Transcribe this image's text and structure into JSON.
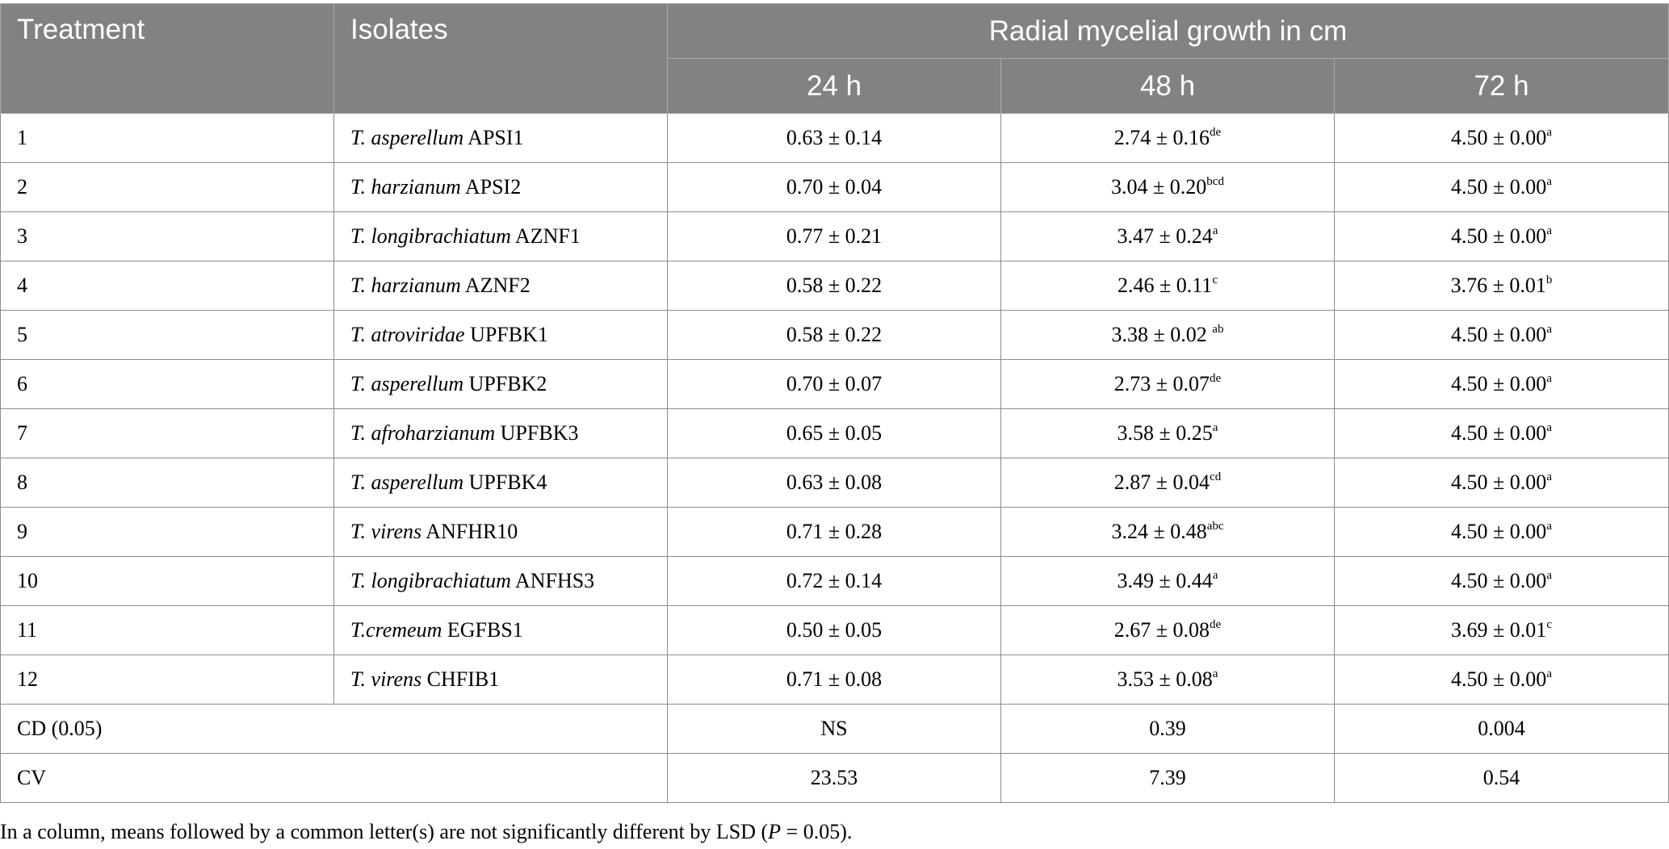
{
  "header": {
    "treatment": "Treatment",
    "isolates": "Isolates",
    "group": "Radial mycelial growth in cm",
    "h24": "24 h",
    "h48": "48 h",
    "h72": "72 h"
  },
  "rows": [
    {
      "treatment": "1",
      "species": "T. asperellum",
      "strain": " APSI1",
      "v24": "0.63 ± 0.14",
      "v48": "2.74 ± 0.16",
      "s48": "de",
      "v72": "4.50 ± 0.00",
      "s72": "a"
    },
    {
      "treatment": "2",
      "species": "T. harzianum",
      "strain": " APSI2",
      "v24": "0.70 ± 0.04",
      "v48": "3.04 ± 0.20",
      "s48": "bcd",
      "v72": "4.50 ± 0.00",
      "s72": "a"
    },
    {
      "treatment": "3",
      "species": "T. longibrachiatum",
      "strain": " AZNF1",
      "v24": "0.77 ± 0.21",
      "v48": "3.47 ± 0.24",
      "s48": "a",
      "v72": "4.50 ± 0.00",
      "s72": "a"
    },
    {
      "treatment": "4",
      "species": "T. harzianum",
      "strain": " AZNF2",
      "v24": "0.58 ± 0.22",
      "v48": "2.46 ± 0.11",
      "s48": "c",
      "v72": "3.76 ± 0.01",
      "s72": "b"
    },
    {
      "treatment": "5",
      "species": "T. atroviridae",
      "strain": " UPFBK1",
      "v24": "0.58 ± 0.22",
      "v48": "3.38 ± 0.02 ",
      "s48": "ab",
      "v72": "4.50 ± 0.00",
      "s72": "a"
    },
    {
      "treatment": "6",
      "species": "T. asperellum",
      "strain": " UPFBK2",
      "v24": "0.70 ± 0.07",
      "v48": "2.73 ± 0.07",
      "s48": "de",
      "v72": "4.50 ± 0.00",
      "s72": "a"
    },
    {
      "treatment": "7",
      "species": "T. afroharzianum",
      "strain": " UPFBK3",
      "v24": "0.65 ± 0.05",
      "v48": "3.58 ± 0.25",
      "s48": "a",
      "v72": "4.50 ± 0.00",
      "s72": "a"
    },
    {
      "treatment": "8",
      "species": "T. asperellum",
      "strain": " UPFBK4",
      "v24": "0.63 ± 0.08",
      "v48": "2.87 ± 0.04",
      "s48": "cd",
      "v72": "4.50 ± 0.00",
      "s72": "a"
    },
    {
      "treatment": "9",
      "species": "T. virens",
      "strain": " ANFHR10",
      "v24": "0.71 ± 0.28",
      "v48": "3.24 ± 0.48",
      "s48": "abc",
      "v72": "4.50 ± 0.00",
      "s72": "a"
    },
    {
      "treatment": "10",
      "species": "T. longibrachiatum",
      "strain": " ANFHS3",
      "v24": "0.72 ± 0.14",
      "v48": "3.49 ± 0.44",
      "s48": "a",
      "v72": "4.50 ± 0.00",
      "s72": "a"
    },
    {
      "treatment": "11",
      "species": "T.cremeum",
      "strain": " EGFBS1",
      "v24": "0.50 ± 0.05",
      "v48": "2.67 ± 0.08",
      "s48": "de",
      "v72": "3.69 ± 0.01",
      "s72": "c"
    },
    {
      "treatment": "12",
      "species": "T. virens",
      "strain": " CHFIB1",
      "v24": "0.71 ± 0.08",
      "v48": "3.53 ± 0.08",
      "s48": "a",
      "v72": "4.50 ± 0.00",
      "s72": "a"
    }
  ],
  "summary": [
    {
      "label": "CD (0.05)",
      "v24": "NS",
      "v48": "0.39",
      "v72": "0.004"
    },
    {
      "label": "CV",
      "v24": "23.53",
      "v48": "7.39",
      "v72": "0.54"
    }
  ],
  "footnote": {
    "before": "In a column, means followed by a common letter(s) are not significantly different by LSD (",
    "p": "P",
    "after": " = 0.05)."
  },
  "colors": {
    "header_bg": "#828282",
    "header_text": "#ffffff",
    "border": "#8c8c8c"
  }
}
